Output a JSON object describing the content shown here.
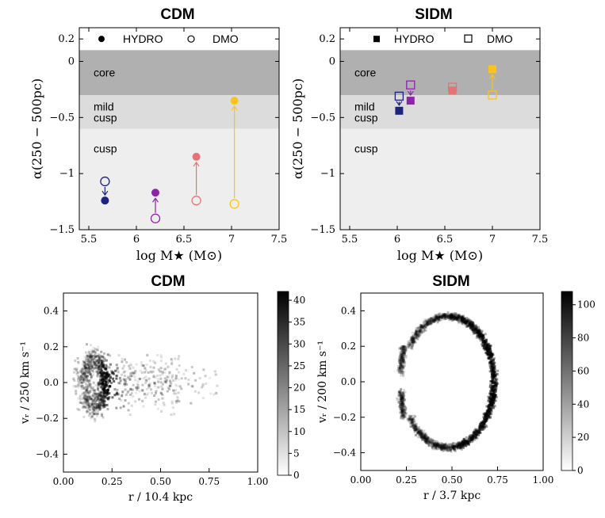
{
  "chart_data": [
    {
      "type": "scatter",
      "title": "CDM",
      "xlabel": "log M★ (M⊙)",
      "ylabel": "α(250 − 500pc)",
      "xlim": [
        5.4,
        7.5
      ],
      "ylim": [
        -1.5,
        0.3
      ],
      "xticks": [
        5.5,
        6.0,
        6.5,
        7.0,
        7.5
      ],
      "xtick_labels": [
        "5.5",
        "6",
        "6.5",
        "7",
        "7.5"
      ],
      "yticks": [
        0.2,
        0,
        -0.5,
        -1,
        -1.5
      ],
      "ytick_labels": [
        "0.2",
        "0",
        "−0.5",
        "−1",
        "−1.5"
      ],
      "regions": [
        {
          "label": "core",
          "y0": -0.3,
          "y1": 0.1,
          "color": "#b0b0b0"
        },
        {
          "label": "mild",
          "label2": "cusp",
          "y0": -0.6,
          "y1": -0.3,
          "color": "#dcdcdc"
        },
        {
          "label": "cusp",
          "y0": -1.5,
          "y1": -0.6,
          "color": "#eeeeee"
        }
      ],
      "legend": {
        "filled": "HYDRO",
        "open": "DMO",
        "marker": "circle"
      },
      "series": [
        {
          "name": "HYDRO",
          "color": "#1a237e",
          "x": 5.67,
          "y": -1.24
        },
        {
          "name": "HYDRO",
          "color": "#8e24aa",
          "x": 6.2,
          "y": -1.17
        },
        {
          "name": "HYDRO",
          "color": "#e57373",
          "x": 6.63,
          "y": -0.85
        },
        {
          "name": "HYDRO",
          "color": "#fcc419",
          "x": 7.03,
          "y": -0.35
        }
      ],
      "dmo": [
        {
          "x": 5.67,
          "y": -1.07
        },
        {
          "x": 6.2,
          "y": -1.4
        },
        {
          "x": 6.63,
          "y": -1.24
        },
        {
          "x": 7.03,
          "y": -1.27
        }
      ]
    },
    {
      "type": "scatter",
      "title": "SIDM",
      "xlabel": "log M★ (M⊙)",
      "ylabel": "α(250 − 500pc)",
      "xlim": [
        5.4,
        7.5
      ],
      "ylim": [
        -1.5,
        0.3
      ],
      "xticks": [
        5.5,
        6.0,
        6.5,
        7.0,
        7.5
      ],
      "xtick_labels": [
        "5.5",
        "6",
        "6.5",
        "7",
        "7.5"
      ],
      "yticks": [
        0.2,
        0,
        -0.5,
        -1,
        -1.5
      ],
      "ytick_labels": [
        "0.2",
        "0",
        "−0.5",
        "−1",
        "−1.5"
      ],
      "regions": [
        {
          "label": "core",
          "y0": -0.3,
          "y1": 0.1,
          "color": "#b0b0b0"
        },
        {
          "label": "mild",
          "label2": "cusp",
          "y0": -0.6,
          "y1": -0.3,
          "color": "#dcdcdc"
        },
        {
          "label": "cusp",
          "y0": -1.5,
          "y1": -0.6,
          "color": "#eeeeee"
        }
      ],
      "legend": {
        "filled": "HYDRO",
        "open": "DMO",
        "marker": "square"
      },
      "series": [
        {
          "name": "HYDRO",
          "color": "#1a237e",
          "x": 6.02,
          "y": -0.44
        },
        {
          "name": "HYDRO",
          "color": "#8e24aa",
          "x": 6.14,
          "y": -0.35
        },
        {
          "name": "HYDRO",
          "color": "#e57373",
          "x": 6.58,
          "y": -0.26
        },
        {
          "name": "HYDRO",
          "color": "#fcc419",
          "x": 7.0,
          "y": -0.07
        }
      ],
      "dmo": [
        {
          "x": 6.02,
          "y": -0.31
        },
        {
          "x": 6.14,
          "y": -0.21
        },
        {
          "x": 6.58,
          "y": -0.23
        },
        {
          "x": 7.0,
          "y": -0.3
        }
      ]
    },
    {
      "type": "heatmap",
      "title": "CDM",
      "xlabel": "r / 10.4 kpc",
      "ylabel": "vᵣ / 250 km s⁻¹",
      "xlim": [
        0,
        1
      ],
      "ylim": [
        -0.5,
        0.5
      ],
      "xticks": [
        0,
        0.25,
        0.5,
        0.75,
        1.0
      ],
      "xtick_labels": [
        "0.00",
        "0.25",
        "0.50",
        "0.75",
        "1.00"
      ],
      "yticks": [
        0.4,
        0.2,
        0.0,
        -0.2,
        -0.4
      ],
      "ytick_labels": [
        "0.4",
        "0.2",
        "0.0",
        "−0.2",
        "−0.4"
      ],
      "colorbar": {
        "min": 0,
        "max": 42,
        "ticks": [
          0,
          5,
          10,
          15,
          20,
          25,
          30,
          35,
          40
        ],
        "tick_labels": [
          "0",
          "5",
          "10",
          "15",
          "20",
          "25",
          "30",
          "35",
          "40"
        ]
      }
    },
    {
      "type": "heatmap",
      "title": "SIDM",
      "xlabel": "r / 3.7 kpc",
      "ylabel": "vᵣ / 200 km s⁻¹",
      "xlim": [
        0,
        1
      ],
      "ylim": [
        -0.5,
        0.5
      ],
      "xticks": [
        0,
        0.25,
        0.5,
        0.75,
        1.0
      ],
      "xtick_labels": [
        "0.00",
        "0.25",
        "0.50",
        "0.75",
        "1.00"
      ],
      "yticks": [
        0.4,
        0.2,
        0.0,
        -0.2,
        -0.4
      ],
      "ytick_labels": [
        "0.4",
        "0.2",
        "0.0",
        "−0.2",
        "−0.4"
      ],
      "colorbar": {
        "min": 0,
        "max": 108,
        "ticks": [
          0,
          20,
          40,
          60,
          80,
          100
        ],
        "tick_labels": [
          "0",
          "20",
          "40",
          "60",
          "80",
          "100"
        ]
      }
    }
  ]
}
